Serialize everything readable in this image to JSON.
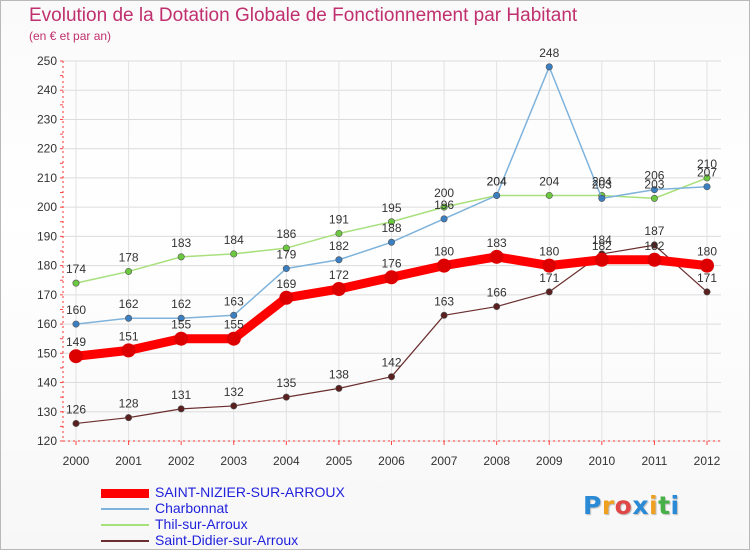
{
  "title": "Evolution de la Dotation Globale de Fonctionnement par Habitant",
  "subtitle": "(en € et par an)",
  "logo": {
    "text": "Proxiti",
    "letters": [
      "P",
      "r",
      "o",
      "x",
      "i",
      "t",
      "i"
    ],
    "colors": [
      "#2a8ad6",
      "#f0a020",
      "#e04848",
      "#2a8ad6",
      "#f0a020",
      "#48b048",
      "#2a8ad6"
    ]
  },
  "chart_data": {
    "type": "line",
    "title": "Evolution de la Dotation Globale de Fonctionnement par Habitant",
    "subtitle": "(en € et par an)",
    "xlabel": "",
    "ylabel": "",
    "ylim": [
      120,
      250
    ],
    "yticks": [
      120,
      130,
      140,
      150,
      160,
      170,
      180,
      190,
      200,
      210,
      220,
      230,
      240,
      250
    ],
    "categories": [
      "2000",
      "2001",
      "2002",
      "2003",
      "2004",
      "2005",
      "2006",
      "2007",
      "2008",
      "2009",
      "2010",
      "2011",
      "2012"
    ],
    "series": [
      {
        "name": "SAINT-NIZIER-SUR-ARROUX",
        "color": "#ff0000",
        "point_color": "#dd0000",
        "line_width": 9,
        "marker_r": 7,
        "values": [
          149,
          151,
          155,
          155,
          169,
          172,
          176,
          180,
          183,
          180,
          182,
          182,
          180
        ],
        "labels": [
          "149",
          "151",
          "155",
          "155",
          "169",
          "172",
          "176",
          "180",
          "183",
          "180",
          "182",
          "182",
          "180"
        ]
      },
      {
        "name": "Charbonnat",
        "color": "#7fb3db",
        "point_color": "#3a7fc2",
        "line_width": 1.5,
        "marker_r": 3.2,
        "values": [
          160,
          162,
          162,
          163,
          179,
          182,
          188,
          196,
          204,
          248,
          203,
          206,
          207
        ],
        "labels": [
          "160",
          "162",
          "162",
          "163",
          "179",
          "182",
          "188",
          "196",
          "204",
          "248",
          "203",
          "206",
          "207"
        ]
      },
      {
        "name": "Thil-sur-Arroux",
        "color": "#a8e07c",
        "point_color": "#6cc840",
        "line_width": 1.5,
        "marker_r": 3.2,
        "values": [
          174,
          178,
          183,
          184,
          186,
          191,
          195,
          200,
          204,
          204,
          204,
          203,
          210
        ],
        "labels": [
          "174",
          "178",
          "183",
          "184",
          "186",
          "191",
          "195",
          "200",
          "204",
          "204",
          "204",
          "203",
          "210"
        ]
      },
      {
        "name": "Saint-Didier-sur-Arroux",
        "color": "#6b2e2e",
        "point_color": "#5a1f1f",
        "line_width": 1.2,
        "marker_r": 3.2,
        "values": [
          126,
          128,
          131,
          132,
          135,
          138,
          142,
          163,
          166,
          171,
          184,
          187,
          171
        ],
        "labels": [
          "126",
          "128",
          "131",
          "132",
          "135",
          "138",
          "142",
          "163",
          "166",
          "171",
          "184",
          "187",
          "171"
        ]
      }
    ],
    "legend_position": "bottom-left",
    "grid": true
  }
}
